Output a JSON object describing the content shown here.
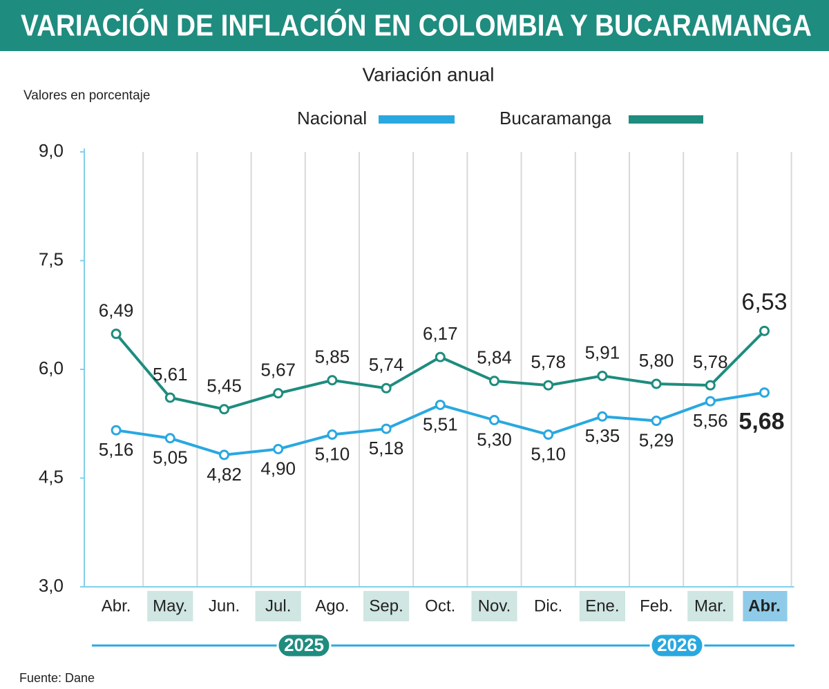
{
  "chart_data": {
    "type": "line",
    "title": "VARIACIÓN DE INFLACIÓN EN COLOMBIA Y BUCARAMANGA",
    "subtitle": "Variación anual",
    "y_label": "Valores en porcentaje",
    "categories": [
      "Abr.",
      "May.",
      "Jun.",
      "Jul.",
      "Ago.",
      "Sep.",
      "Oct.",
      "Nov.",
      "Dic.",
      "Ene.",
      "Feb.",
      "Mar.",
      "Abr."
    ],
    "years": [
      "2025",
      "2026"
    ],
    "series": [
      {
        "name": "Nacional",
        "color": "#29a8e0",
        "values": [
          5.16,
          5.05,
          4.82,
          4.9,
          5.1,
          5.18,
          5.51,
          5.3,
          5.1,
          5.35,
          5.29,
          5.56,
          5.68
        ],
        "value_labels": [
          "5,16",
          "5,05",
          "4,82",
          "4,90",
          "5,10",
          "5,18",
          "5,51",
          "5,30",
          "5,10",
          "5,35",
          "5,29",
          "5,56",
          "5,68"
        ]
      },
      {
        "name": "Bucaramanga",
        "color": "#1e8c7e",
        "values": [
          6.49,
          5.61,
          5.45,
          5.67,
          5.85,
          5.74,
          6.17,
          5.84,
          5.78,
          5.91,
          5.8,
          5.78,
          6.53
        ],
        "value_labels": [
          "6,49",
          "5,61",
          "5,45",
          "5,67",
          "5,85",
          "5,74",
          "6,17",
          "5,84",
          "5,78",
          "5,91",
          "5,80",
          "5,78",
          "6,53"
        ]
      }
    ],
    "ylim": [
      3,
      9
    ],
    "yticks": [
      {
        "value": 3,
        "label": "3,0"
      },
      {
        "value": 4.5,
        "label": "4,5"
      },
      {
        "value": 6,
        "label": "6,0"
      },
      {
        "value": 7.5,
        "label": "7,5"
      },
      {
        "value": 9,
        "label": "9,0"
      }
    ],
    "source": "Fuente: Dane"
  }
}
